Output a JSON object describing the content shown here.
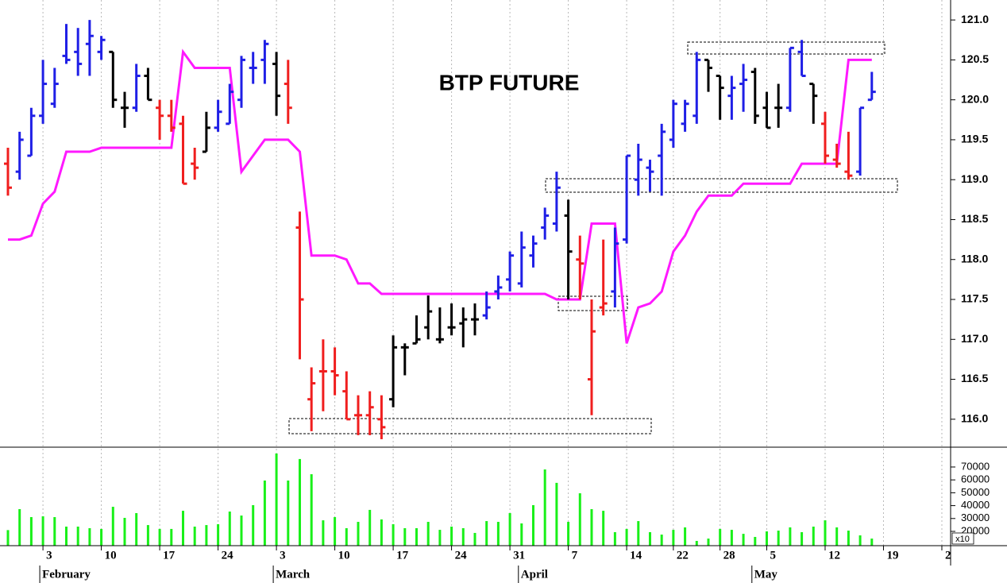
{
  "chart_data": [
    {
      "type": "ohlc",
      "title": "BTP FUTURE",
      "open": [
        119.2,
        119.1,
        119.3,
        119.8,
        119.95,
        120.55,
        120.6,
        120.7,
        120.6,
        120.6,
        119.9,
        119.9,
        120.3,
        119.9,
        119.8,
        119.7,
        119.2,
        119.35,
        119.65,
        119.7,
        120.0,
        120.4,
        120.5,
        120.45,
        120.2,
        118.4,
        116.25,
        116.6,
        116.6,
        116.35,
        116.05,
        116.05,
        116.0,
        116.25,
        116.9,
        116.95,
        117.15,
        117.0,
        117.15,
        117.2,
        117.25,
        117.3,
        117.6,
        117.75,
        117.7,
        118.05,
        118.4,
        118.45,
        118.55,
        118.0,
        116.5,
        117.4,
        117.6,
        118.25,
        119.0,
        119.15,
        119.3,
        119.5,
        119.7,
        119.8,
        120.5,
        120.3,
        120.05,
        120.2,
        120.35,
        119.9,
        119.9,
        119.9,
        120.6,
        120.2,
        119.7,
        119.25,
        119.1,
        119.1,
        120.0
      ],
      "high": [
        119.4,
        119.6,
        119.9,
        120.5,
        120.4,
        120.95,
        120.9,
        121.0,
        120.8,
        120.6,
        120.1,
        120.45,
        120.4,
        120.0,
        120.0,
        119.8,
        119.4,
        119.85,
        120.0,
        120.2,
        120.55,
        120.6,
        120.75,
        120.6,
        120.5,
        118.6,
        116.65,
        117.0,
        116.9,
        116.6,
        116.3,
        116.35,
        116.3,
        117.05,
        116.95,
        117.3,
        117.55,
        117.4,
        117.45,
        117.4,
        117.45,
        117.6,
        117.8,
        118.1,
        118.35,
        118.3,
        118.65,
        119.1,
        118.75,
        118.3,
        117.5,
        118.25,
        118.4,
        119.3,
        119.45,
        119.25,
        119.7,
        120.0,
        120.0,
        120.6,
        120.5,
        120.3,
        120.3,
        120.45,
        120.4,
        120.1,
        120.2,
        120.65,
        120.75,
        120.2,
        119.85,
        119.45,
        119.6,
        119.9,
        120.35
      ],
      "low": [
        118.8,
        119.0,
        119.3,
        119.7,
        119.9,
        120.45,
        120.3,
        120.3,
        120.5,
        119.9,
        119.65,
        119.85,
        120.0,
        119.5,
        119.6,
        118.95,
        119.0,
        119.35,
        119.6,
        119.7,
        119.9,
        120.2,
        120.2,
        119.8,
        119.7,
        116.75,
        115.85,
        116.1,
        116.3,
        116.0,
        115.8,
        115.8,
        115.75,
        116.15,
        116.55,
        116.95,
        117.0,
        116.95,
        117.05,
        116.9,
        117.05,
        117.25,
        117.5,
        117.6,
        117.65,
        117.9,
        118.25,
        118.35,
        117.5,
        117.5,
        116.05,
        117.3,
        117.4,
        118.2,
        118.8,
        118.85,
        118.8,
        119.4,
        119.6,
        119.7,
        120.1,
        119.75,
        119.75,
        119.85,
        119.7,
        119.65,
        119.65,
        119.85,
        120.3,
        119.7,
        119.2,
        119.15,
        119.0,
        119.05,
        120.0
      ],
      "close": [
        118.9,
        119.5,
        119.8,
        120.2,
        120.2,
        120.5,
        120.45,
        120.8,
        120.75,
        120.0,
        119.9,
        120.3,
        120.0,
        119.8,
        119.65,
        118.95,
        119.15,
        119.65,
        119.85,
        120.1,
        120.5,
        120.4,
        120.7,
        120.05,
        119.9,
        117.5,
        116.45,
        116.6,
        116.55,
        116.0,
        116.05,
        116.15,
        115.9,
        116.9,
        116.9,
        117.0,
        117.35,
        117.0,
        117.15,
        117.25,
        117.25,
        117.4,
        117.65,
        118.05,
        118.15,
        118.2,
        118.55,
        118.9,
        118.1,
        117.95,
        117.1,
        117.45,
        118.2,
        119.3,
        119.25,
        119.1,
        119.6,
        119.95,
        119.95,
        120.5,
        120.4,
        120.15,
        120.15,
        120.25,
        119.8,
        119.65,
        119.9,
        120.65,
        120.3,
        120.05,
        119.3,
        119.2,
        119.05,
        119.9,
        120.1
      ],
      "colors": [
        "#f01e1e",
        "#1f1fe6",
        "#1f1fe6",
        "#1f1fe6",
        "#1f1fe6",
        "#1f1fe6",
        "#1f1fe6",
        "#1f1fe6",
        "#1f1fe6",
        "#000000",
        "#000000",
        "#1f1fe6",
        "#000000",
        "#f01e1e",
        "#f01e1e",
        "#f01e1e",
        "#f01e1e",
        "#000000",
        "#1f1fe6",
        "#1f1fe6",
        "#1f1fe6",
        "#1f1fe6",
        "#1f1fe6",
        "#000000",
        "#f01e1e",
        "#f01e1e",
        "#f01e1e",
        "#f01e1e",
        "#f01e1e",
        "#f01e1e",
        "#f01e1e",
        "#f01e1e",
        "#f01e1e",
        "#000000",
        "#000000",
        "#000000",
        "#000000",
        "#000000",
        "#000000",
        "#000000",
        "#000000",
        "#1f1fe6",
        "#1f1fe6",
        "#1f1fe6",
        "#1f1fe6",
        "#1f1fe6",
        "#1f1fe6",
        "#1f1fe6",
        "#000000",
        "#f01e1e",
        "#f01e1e",
        "#f01e1e",
        "#1f1fe6",
        "#1f1fe6",
        "#1f1fe6",
        "#1f1fe6",
        "#1f1fe6",
        "#1f1fe6",
        "#1f1fe6",
        "#1f1fe6",
        "#000000",
        "#000000",
        "#1f1fe6",
        "#1f1fe6",
        "#000000",
        "#000000",
        "#000000",
        "#1f1fe6",
        "#1f1fe6",
        "#000000",
        "#f01e1e",
        "#f01e1e",
        "#f01e1e",
        "#1f1fe6",
        "#1f1fe6"
      ],
      "stop_line": {
        "color": "#ff19ff",
        "values": [
          118.25,
          118.25,
          118.3,
          118.7,
          118.85,
          119.35,
          119.35,
          119.35,
          119.4,
          119.4,
          119.4,
          119.4,
          119.4,
          119.4,
          119.4,
          120.6,
          120.4,
          120.4,
          120.4,
          120.4,
          119.1,
          119.3,
          119.5,
          119.5,
          119.5,
          119.35,
          118.05,
          118.05,
          118.05,
          118.0,
          117.7,
          117.7,
          117.57,
          117.57,
          117.57,
          117.57,
          117.57,
          117.57,
          117.57,
          117.57,
          117.57,
          117.57,
          117.57,
          117.57,
          117.57,
          117.57,
          117.57,
          117.5,
          117.5,
          117.5,
          118.45,
          118.45,
          118.45,
          116.95,
          117.4,
          117.45,
          117.6,
          118.1,
          118.3,
          118.6,
          118.8,
          118.8,
          118.8,
          118.95,
          118.95,
          118.95,
          118.95,
          118.95,
          119.2,
          119.2,
          119.2,
          119.2,
          120.5,
          120.5,
          120.5
        ]
      },
      "xlim": [
        -0.68,
        80.75
      ],
      "xticks": [
        {
          "value": 3,
          "label": "3"
        },
        {
          "value": 8,
          "label": "10"
        },
        {
          "value": 13,
          "label": "17"
        },
        {
          "value": 18,
          "label": "24"
        },
        {
          "value": 23,
          "label": "3"
        },
        {
          "value": 28,
          "label": "10"
        },
        {
          "value": 33,
          "label": "17"
        },
        {
          "value": 38,
          "label": "24"
        },
        {
          "value": 43,
          "label": "31"
        },
        {
          "value": 48,
          "label": "7"
        },
        {
          "value": 53,
          "label": "14"
        },
        {
          "value": 57,
          "label": "22"
        },
        {
          "value": 61,
          "label": "28"
        },
        {
          "value": 65,
          "label": "5"
        },
        {
          "value": 70,
          "label": "12"
        },
        {
          "value": 75,
          "label": "19"
        },
        {
          "value": 80,
          "label": "2"
        }
      ],
      "month_ticks": [
        {
          "value": 3,
          "label": "February"
        },
        {
          "value": 23,
          "label": "March"
        },
        {
          "value": 44,
          "label": "April"
        },
        {
          "value": 64,
          "label": "May"
        }
      ],
      "ylim": [
        115.65,
        121.25
      ],
      "yticks": [
        {
          "value": 116,
          "label": "116.0"
        },
        116.5,
        {
          "value": 117,
          "label": "117.0"
        },
        117.5,
        {
          "value": 118,
          "label": "118.0"
        },
        118.5,
        {
          "value": 119,
          "label": "119.0"
        },
        119.5,
        {
          "value": 120,
          "label": "120.0"
        },
        120.5,
        {
          "value": 121,
          "label": "121.0"
        }
      ],
      "grid": true
    },
    {
      "type": "bar",
      "values": [
        21000,
        37300,
        31100,
        31700,
        31100,
        23700,
        23700,
        22500,
        21900,
        39100,
        30500,
        34200,
        24900,
        21900,
        21900,
        36000,
        23700,
        24900,
        25600,
        35400,
        32300,
        40400,
        59500,
        80500,
        59500,
        76200,
        64400,
        28600,
        31100,
        22500,
        27400,
        36700,
        29300,
        25600,
        22500,
        22500,
        27400,
        21200,
        23700,
        22500,
        18800,
        28000,
        27400,
        34200,
        26200,
        40400,
        68100,
        57700,
        27400,
        49600,
        37300,
        36000,
        19400,
        21900,
        28000,
        19400,
        17500,
        21200,
        23100,
        12600,
        14400,
        21900,
        21200,
        18100,
        15700,
        20000,
        20600,
        23100,
        19400,
        23700,
        28600,
        23100,
        20600,
        16900,
        14400
      ],
      "color": "#19f019",
      "multiplier": "x10",
      "xlim": [
        -0.68,
        80.75
      ],
      "ylim": [
        8900,
        85400
      ],
      "yticks": [
        20000,
        30000,
        40000,
        50000,
        60000,
        70000
      ]
    }
  ]
}
